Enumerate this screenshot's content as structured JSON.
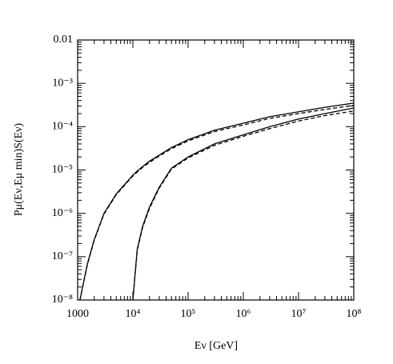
{
  "chart_data": {
    "type": "line",
    "x_label": "Eν [GeV]",
    "y_label": "Pμ(Eν,Eμ min)S(Eν)",
    "x": [
      1100,
      1500,
      2000,
      3000,
      5000,
      10000,
      12000,
      15000,
      20000,
      30000,
      50000,
      100000,
      300000,
      1000000,
      3000000,
      10000000,
      30000000,
      100000000
    ],
    "series": [
      {
        "color": "#000000",
        "dash": false,
        "values": [
          1e-08,
          6.8e-08,
          2.5e-07,
          1e-06,
          2.8e-06,
          7.6e-06,
          9.5e-06,
          1.2e-05,
          1.6e-05,
          2.2e-05,
          3.3e-05,
          5e-05,
          8.3e-05,
          0.00012,
          0.00017,
          0.00022,
          0.00028,
          0.00035
        ]
      },
      {
        "color": "#000000",
        "dash": true,
        "values": [
          1e-08,
          6.5e-08,
          2.4e-07,
          9.6e-07,
          2.7e-06,
          7.3e-06,
          9e-06,
          1.15e-05,
          1.5e-05,
          2.1e-05,
          3.1e-05,
          4.7e-05,
          7.7e-05,
          0.00011,
          0.000155,
          0.0002,
          0.00025,
          0.00031
        ]
      },
      {
        "color": "#000000",
        "dash": false,
        "values": [
          null,
          null,
          null,
          null,
          null,
          1e-08,
          1.5e-07,
          5e-07,
          1.4e-06,
          4e-06,
          1.1e-05,
          2e-05,
          4e-05,
          6.5e-05,
          0.0001,
          0.00015,
          0.0002,
          0.00027
        ]
      },
      {
        "color": "#000000",
        "dash": true,
        "values": [
          null,
          null,
          null,
          null,
          null,
          1e-08,
          1.4e-07,
          4.7e-07,
          1.3e-06,
          3.8e-06,
          1.05e-05,
          1.9e-05,
          3.7e-05,
          6e-05,
          9e-05,
          0.000135,
          0.00018,
          0.00023
        ]
      }
    ],
    "xlog": true,
    "ylog": true,
    "xlim": [
      1000,
      100000000
    ],
    "ylim": [
      1e-08,
      0.01
    ],
    "xticks": [
      1000,
      {
        "value": 10000,
        "label": "10⁴"
      },
      {
        "value": 100000,
        "label": "10⁵"
      },
      {
        "value": 1000000,
        "label": "10⁶"
      },
      {
        "value": 10000000,
        "label": "10⁷"
      },
      {
        "value": 100000000,
        "label": "10⁸"
      }
    ],
    "yticks": [
      {
        "value": 1e-08,
        "label": "10⁻⁸"
      },
      {
        "value": 1e-07,
        "label": "10⁻⁷"
      },
      {
        "value": 1e-06,
        "label": "10⁻⁶"
      },
      {
        "value": 1e-05,
        "label": "10⁻⁵"
      },
      {
        "value": 0.0001,
        "label": "10⁻⁴"
      },
      {
        "value": 0.001,
        "label": "10⁻³"
      },
      0.01
    ]
  }
}
